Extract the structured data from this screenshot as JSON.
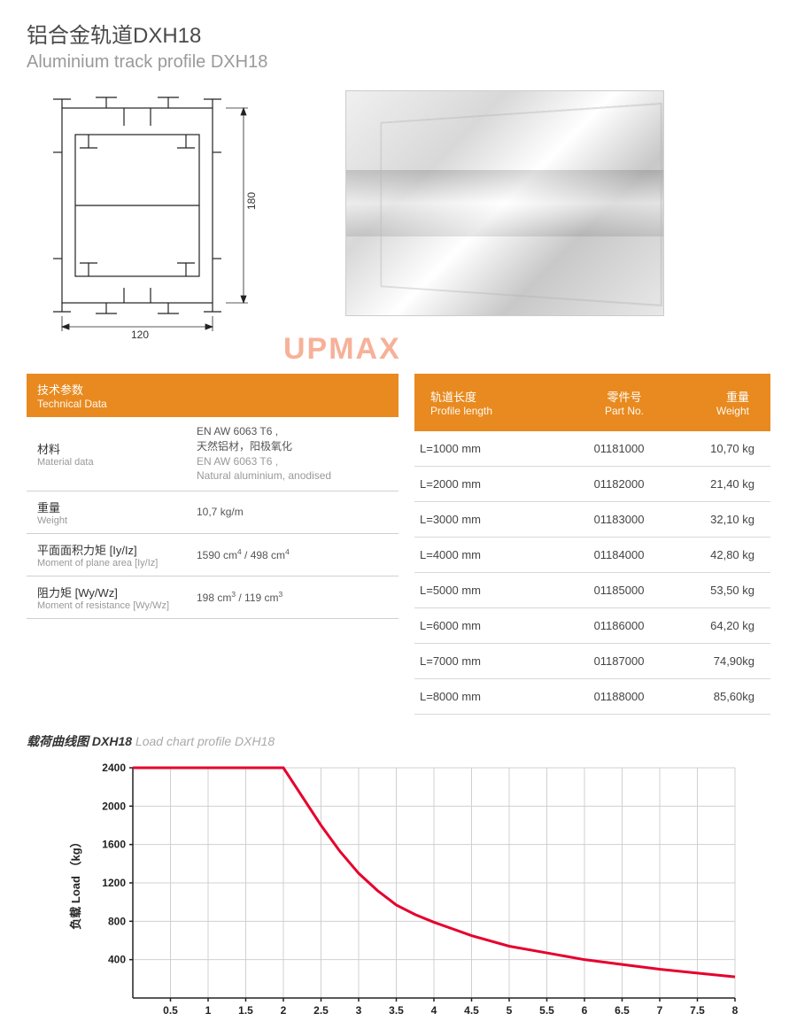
{
  "title": {
    "cn": "铝合金轨道DXH18",
    "en": "Aluminium track profile DXH18"
  },
  "drawing": {
    "width_label": "120",
    "height_label": "180"
  },
  "watermark": "UPMAX",
  "tech_header": {
    "cn": "技术参数",
    "en": "Technical Data"
  },
  "tech_rows": [
    {
      "label_cn": "材料",
      "label_en": "Material data",
      "value_html": "EN AW 6063 T6 ,<br>天然铝材，阳极氧化<br><span class='sub'>EN AW 6063 T6 ,<br>Natural aluminium, anodised</span>"
    },
    {
      "label_cn": "重量",
      "label_en": "Weight",
      "value_html": "10,7 kg/m"
    },
    {
      "label_cn": "平面面积力矩 [Iy/Iz]",
      "label_en": "Moment of plane area [Iy/Iz]",
      "value_html": "1590 cm<sup>4</sup> / 498 cm<sup>4</sup>"
    },
    {
      "label_cn": "阻力矩 [Wy/Wz]",
      "label_en": "Moment of resistance [Wy/Wz]",
      "value_html": "198 cm<sup>3</sup> / 119 cm<sup>3</sup>"
    }
  ],
  "length_header": {
    "col1_cn": "轨道长度",
    "col1_en": "Profile length",
    "col2_cn": "零件号",
    "col2_en": "Part No.",
    "col3_cn": "重量",
    "col3_en": "Weight"
  },
  "length_rows": [
    {
      "len": "L=1000 mm",
      "part": "01181000",
      "weight": "10,70 kg"
    },
    {
      "len": "L=2000 mm",
      "part": "01182000",
      "weight": "21,40 kg"
    },
    {
      "len": "L=3000 mm",
      "part": "01183000",
      "weight": "32,10 kg"
    },
    {
      "len": "L=4000 mm",
      "part": "01184000",
      "weight": "42,80 kg"
    },
    {
      "len": "L=5000 mm",
      "part": "01185000",
      "weight": "53,50 kg"
    },
    {
      "len": "L=6000 mm",
      "part": "01186000",
      "weight": "64,20 kg"
    },
    {
      "len": "L=7000 mm",
      "part": "01187000",
      "weight": "74,90kg"
    },
    {
      "len": "L=8000 mm",
      "part": "01188000",
      "weight": "85,60kg"
    }
  ],
  "chart_title": {
    "cn": "载荷曲线图 DXH18",
    "en": "Load chart profile DXH18"
  },
  "chart": {
    "type": "line",
    "ylabel_cn": "负载",
    "ylabel_en": "Load",
    "ylabel_unit": "（kg）",
    "y_ticks": [
      400,
      800,
      1200,
      1600,
      2000,
      2400
    ],
    "x_ticks": [
      0.5,
      1,
      1.5,
      2,
      2.5,
      3,
      3.5,
      4,
      4.5,
      5,
      5.5,
      6,
      6.5,
      7,
      7.5,
      8
    ],
    "xlim": [
      0,
      8
    ],
    "ylim": [
      0,
      2400
    ],
    "line_color": "#e6002d",
    "line_width": 3,
    "grid_color": "#d0d0d0",
    "axis_color": "#222222",
    "background_color": "#ffffff",
    "tick_font_size": 12,
    "data": [
      {
        "x": 0.0,
        "y": 2400
      },
      {
        "x": 2.0,
        "y": 2400
      },
      {
        "x": 2.25,
        "y": 2100
      },
      {
        "x": 2.5,
        "y": 1800
      },
      {
        "x": 2.75,
        "y": 1530
      },
      {
        "x": 3.0,
        "y": 1300
      },
      {
        "x": 3.25,
        "y": 1120
      },
      {
        "x": 3.5,
        "y": 970
      },
      {
        "x": 3.75,
        "y": 870
      },
      {
        "x": 4.0,
        "y": 790
      },
      {
        "x": 4.5,
        "y": 650
      },
      {
        "x": 5.0,
        "y": 540
      },
      {
        "x": 5.5,
        "y": 470
      },
      {
        "x": 6.0,
        "y": 400
      },
      {
        "x": 6.5,
        "y": 350
      },
      {
        "x": 7.0,
        "y": 300
      },
      {
        "x": 7.5,
        "y": 260
      },
      {
        "x": 8.0,
        "y": 220
      }
    ]
  }
}
